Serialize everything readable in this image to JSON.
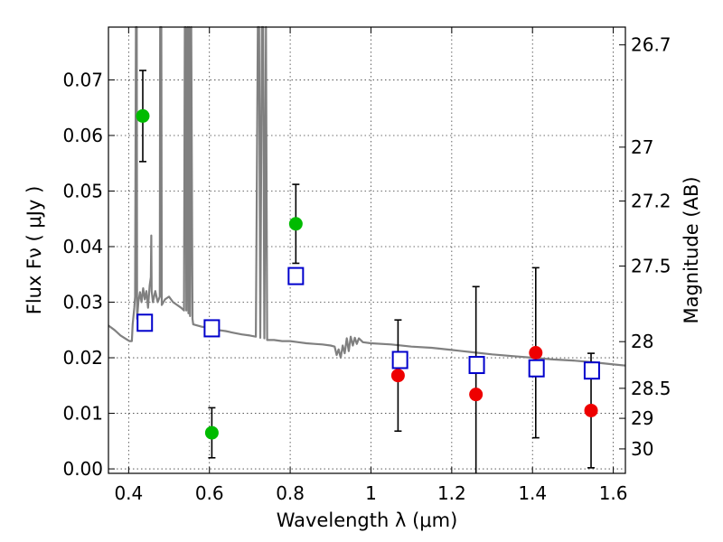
{
  "chart_data": {
    "type": "scatter",
    "xlabel": "Wavelength  λ (μm)",
    "ylabel": "Flux  Fν  ( μJy )",
    "ylabel_right": "Magnitude (AB)",
    "xlim": [
      0.35,
      1.63
    ],
    "ylim": [
      -0.0008,
      0.0795
    ],
    "grid": true,
    "x_ticks": [
      0.4,
      0.6,
      0.8,
      1.0,
      1.2,
      1.4,
      1.6
    ],
    "x_tick_labels": [
      "0.4",
      "0.6",
      "0.8",
      "1",
      "1.2",
      "1.4",
      "1.6"
    ],
    "y_ticks": [
      0.0,
      0.01,
      0.02,
      0.03,
      0.04,
      0.05,
      0.06,
      0.07
    ],
    "y_tick_labels": [
      "0.00",
      "0.01",
      "0.02",
      "0.03",
      "0.04",
      "0.05",
      "0.06",
      "0.07"
    ],
    "right_ticks": [
      {
        "label": "26.7",
        "flux": 0.0763
      },
      {
        "label": "27",
        "flux": 0.0579
      },
      {
        "label": "27.2",
        "flux": 0.0482
      },
      {
        "label": "27.5",
        "flux": 0.0365
      },
      {
        "label": "28",
        "flux": 0.0229
      },
      {
        "label": "28.5",
        "flux": 0.0145
      },
      {
        "label": "29",
        "flux": 0.0091
      },
      {
        "label": "30",
        "flux": 0.0036
      }
    ],
    "series": [
      {
        "marker": "circle",
        "color": "#00bb00",
        "points": [
          {
            "x": 0.435,
            "y": 0.0635,
            "yerr": 0.0082
          },
          {
            "x": 0.606,
            "y": 0.0065,
            "yerr": 0.0045
          },
          {
            "x": 0.814,
            "y": 0.0441,
            "yerr": 0.0071
          }
        ]
      },
      {
        "marker": "circle",
        "color": "#ee0000",
        "points": [
          {
            "x": 1.067,
            "y": 0.0168,
            "yerr": 0.01
          },
          {
            "x": 1.26,
            "y": 0.0134,
            "yerr": 0.0194
          },
          {
            "x": 1.408,
            "y": 0.0209,
            "yerr": 0.0153
          },
          {
            "x": 1.545,
            "y": 0.0105,
            "yerr": 0.0103
          }
        ]
      },
      {
        "marker": "square",
        "color": "#0000cc",
        "points": [
          {
            "x": 0.44,
            "y": 0.0263
          },
          {
            "x": 0.606,
            "y": 0.0253
          },
          {
            "x": 0.814,
            "y": 0.0347
          },
          {
            "x": 1.072,
            "y": 0.0196
          },
          {
            "x": 1.262,
            "y": 0.0187
          },
          {
            "x": 1.41,
            "y": 0.0181
          },
          {
            "x": 1.547,
            "y": 0.0177
          }
        ]
      }
    ],
    "sed_line": {
      "color": "#808080",
      "points": [
        [
          0.35,
          0.0258
        ],
        [
          0.365,
          0.025
        ],
        [
          0.38,
          0.024
        ],
        [
          0.395,
          0.0233
        ],
        [
          0.402,
          0.023
        ],
        [
          0.408,
          0.023
        ],
        [
          0.41,
          0.026
        ],
        [
          0.414,
          0.029
        ],
        [
          0.416,
          0.031
        ],
        [
          0.418,
          0.0795
        ],
        [
          0.42,
          0.0795
        ],
        [
          0.421,
          0.027
        ],
        [
          0.424,
          0.03
        ],
        [
          0.428,
          0.0318
        ],
        [
          0.432,
          0.03
        ],
        [
          0.436,
          0.0325
        ],
        [
          0.44,
          0.0305
        ],
        [
          0.444,
          0.032
        ],
        [
          0.448,
          0.029
        ],
        [
          0.452,
          0.033
        ],
        [
          0.455,
          0.0345
        ],
        [
          0.456,
          0.042
        ],
        [
          0.457,
          0.032
        ],
        [
          0.46,
          0.03
        ],
        [
          0.466,
          0.032
        ],
        [
          0.472,
          0.03
        ],
        [
          0.477,
          0.031
        ],
        [
          0.478,
          0.0795
        ],
        [
          0.481,
          0.0795
        ],
        [
          0.482,
          0.0295
        ],
        [
          0.49,
          0.0305
        ],
        [
          0.5,
          0.031
        ],
        [
          0.51,
          0.03
        ],
        [
          0.52,
          0.0295
        ],
        [
          0.53,
          0.029
        ],
        [
          0.537,
          0.0285
        ],
        [
          0.539,
          0.0795
        ],
        [
          0.541,
          0.0795
        ],
        [
          0.543,
          0.0285
        ],
        [
          0.546,
          0.0795
        ],
        [
          0.548,
          0.028
        ],
        [
          0.55,
          0.0795
        ],
        [
          0.552,
          0.0275
        ],
        [
          0.555,
          0.0795
        ],
        [
          0.558,
          0.027
        ],
        [
          0.56,
          0.026
        ],
        [
          0.58,
          0.0256
        ],
        [
          0.6,
          0.0254
        ],
        [
          0.62,
          0.025
        ],
        [
          0.64,
          0.0248
        ],
        [
          0.66,
          0.0245
        ],
        [
          0.68,
          0.0242
        ],
        [
          0.7,
          0.024
        ],
        [
          0.715,
          0.0238
        ],
        [
          0.72,
          0.0795
        ],
        [
          0.723,
          0.0795
        ],
        [
          0.726,
          0.0236
        ],
        [
          0.73,
          0.0795
        ],
        [
          0.733,
          0.0795
        ],
        [
          0.736,
          0.0235
        ],
        [
          0.74,
          0.0795
        ],
        [
          0.743,
          0.0232
        ],
        [
          0.76,
          0.0232
        ],
        [
          0.78,
          0.023
        ],
        [
          0.8,
          0.023
        ],
        [
          0.82,
          0.0228
        ],
        [
          0.84,
          0.0226
        ],
        [
          0.86,
          0.0225
        ],
        [
          0.88,
          0.0224
        ],
        [
          0.9,
          0.0222
        ],
        [
          0.91,
          0.022
        ],
        [
          0.915,
          0.0205
        ],
        [
          0.92,
          0.0215
        ],
        [
          0.925,
          0.02
        ],
        [
          0.93,
          0.0222
        ],
        [
          0.935,
          0.0208
        ],
        [
          0.94,
          0.0235
        ],
        [
          0.945,
          0.0212
        ],
        [
          0.95,
          0.0238
        ],
        [
          0.955,
          0.0222
        ],
        [
          0.96,
          0.0236
        ],
        [
          0.965,
          0.0225
        ],
        [
          0.97,
          0.0235
        ],
        [
          0.98,
          0.0228
        ],
        [
          1.0,
          0.0226
        ],
        [
          1.05,
          0.0224
        ],
        [
          1.1,
          0.022
        ],
        [
          1.15,
          0.0218
        ],
        [
          1.2,
          0.0214
        ],
        [
          1.25,
          0.021
        ],
        [
          1.3,
          0.0206
        ],
        [
          1.35,
          0.0203
        ],
        [
          1.4,
          0.02
        ],
        [
          1.45,
          0.0197
        ],
        [
          1.5,
          0.0195
        ],
        [
          1.55,
          0.0192
        ],
        [
          1.6,
          0.0188
        ],
        [
          1.63,
          0.0186
        ]
      ]
    }
  }
}
